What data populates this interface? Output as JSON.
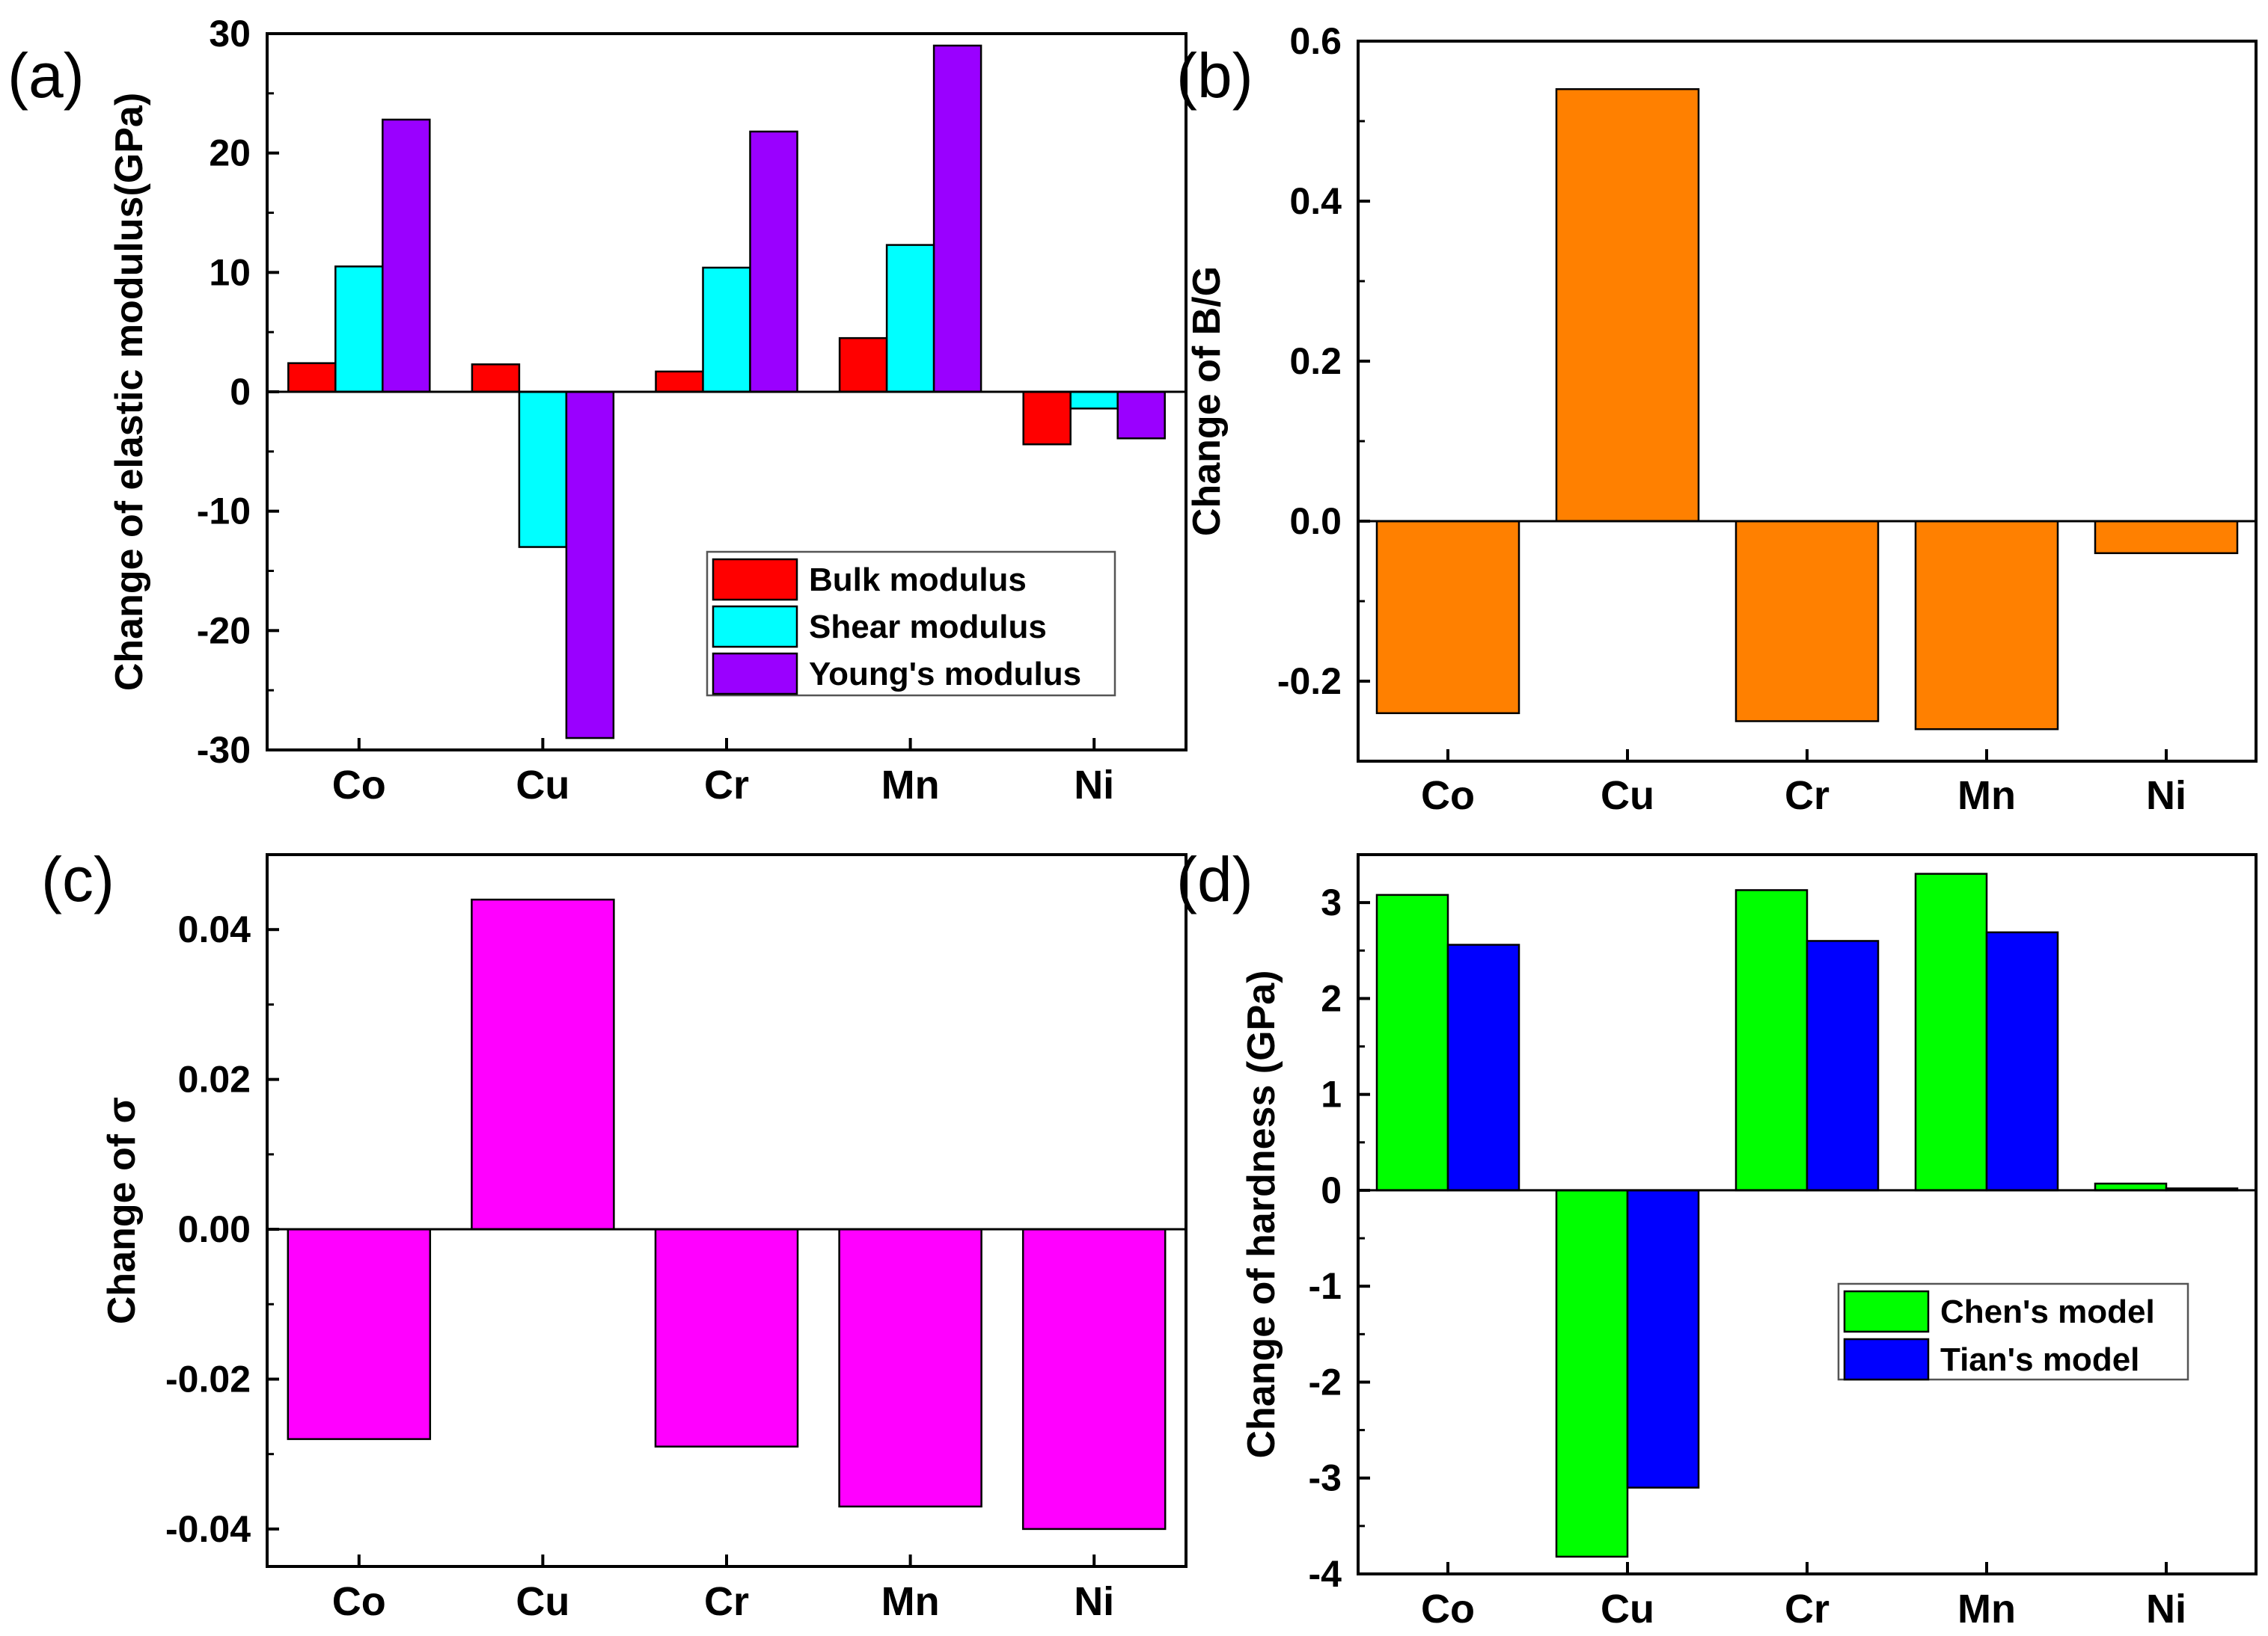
{
  "chart_data": [
    {
      "type": "bar",
      "panel": "(a)",
      "ylabel": "Change of elastic modulus(GPa)",
      "ylim": [
        -30,
        30
      ],
      "yticks": [
        -30,
        -20,
        -10,
        0,
        10,
        20,
        30
      ],
      "ytick_labels": [
        "-30",
        "-20",
        "-10",
        "0",
        "10",
        "20",
        "30"
      ],
      "categories": [
        "Co",
        "Cu",
        "Cr",
        "Mn",
        "Ni"
      ],
      "legend_position": "bottom-right",
      "series": [
        {
          "name": "Bulk modulus",
          "color": "#ff0000",
          "values": [
            2.4,
            2.3,
            1.7,
            4.5,
            -4.4
          ]
        },
        {
          "name": "Shear modulus",
          "color": "#00ffff",
          "values": [
            10.5,
            -13.0,
            10.4,
            12.3,
            -1.4
          ]
        },
        {
          "name": "Young's modulus",
          "color": "#9a00ff",
          "values": [
            22.8,
            -29.0,
            21.8,
            29.0,
            -3.9
          ]
        }
      ]
    },
    {
      "type": "bar",
      "panel": "(b)",
      "ylabel": "Change of B/G",
      "ylim": [
        -0.3,
        0.6
      ],
      "yticks": [
        -0.2,
        0.0,
        0.2,
        0.4,
        0.6
      ],
      "ytick_labels": [
        "-0.2",
        "0.0",
        "0.2",
        "0.4",
        "0.6"
      ],
      "categories": [
        "Co",
        "Cu",
        "Cr",
        "Mn",
        "Ni"
      ],
      "series": [
        {
          "name": "B/G",
          "color": "#ff8000",
          "values": [
            -0.24,
            0.54,
            -0.25,
            -0.26,
            -0.04
          ]
        }
      ]
    },
    {
      "type": "bar",
      "panel": "(c)",
      "ylabel": "Change of σ",
      "ylim": [
        -0.045,
        0.05
      ],
      "yticks": [
        -0.04,
        -0.02,
        0.0,
        0.02,
        0.04
      ],
      "ytick_labels": [
        "-0.04",
        "-0.02",
        "0.00",
        "0.02",
        "0.04"
      ],
      "categories": [
        "Co",
        "Cu",
        "Cr",
        "Mn",
        "Ni"
      ],
      "series": [
        {
          "name": "σ",
          "color": "#ff00ff",
          "values": [
            -0.028,
            0.044,
            -0.029,
            -0.037,
            -0.04
          ]
        }
      ]
    },
    {
      "type": "bar",
      "panel": "(d)",
      "ylabel": "Change of hardness (GPa)",
      "ylim": [
        -4,
        3.5
      ],
      "yticks": [
        -4,
        -3,
        -2,
        -1,
        0,
        1,
        2,
        3
      ],
      "ytick_labels": [
        "-4",
        "-3",
        "-2",
        "-1",
        "0",
        "1",
        "2",
        "3"
      ],
      "categories": [
        "Co",
        "Cu",
        "Cr",
        "Mn",
        "Ni"
      ],
      "legend_position": "bottom-right",
      "series": [
        {
          "name": "Chen's model",
          "color": "#00ff00",
          "values": [
            3.08,
            -3.82,
            3.13,
            3.3,
            0.07
          ]
        },
        {
          "name": "Tian's model",
          "color": "#0000ff",
          "values": [
            2.56,
            -3.1,
            2.6,
            2.69,
            0.02
          ]
        }
      ]
    }
  ]
}
